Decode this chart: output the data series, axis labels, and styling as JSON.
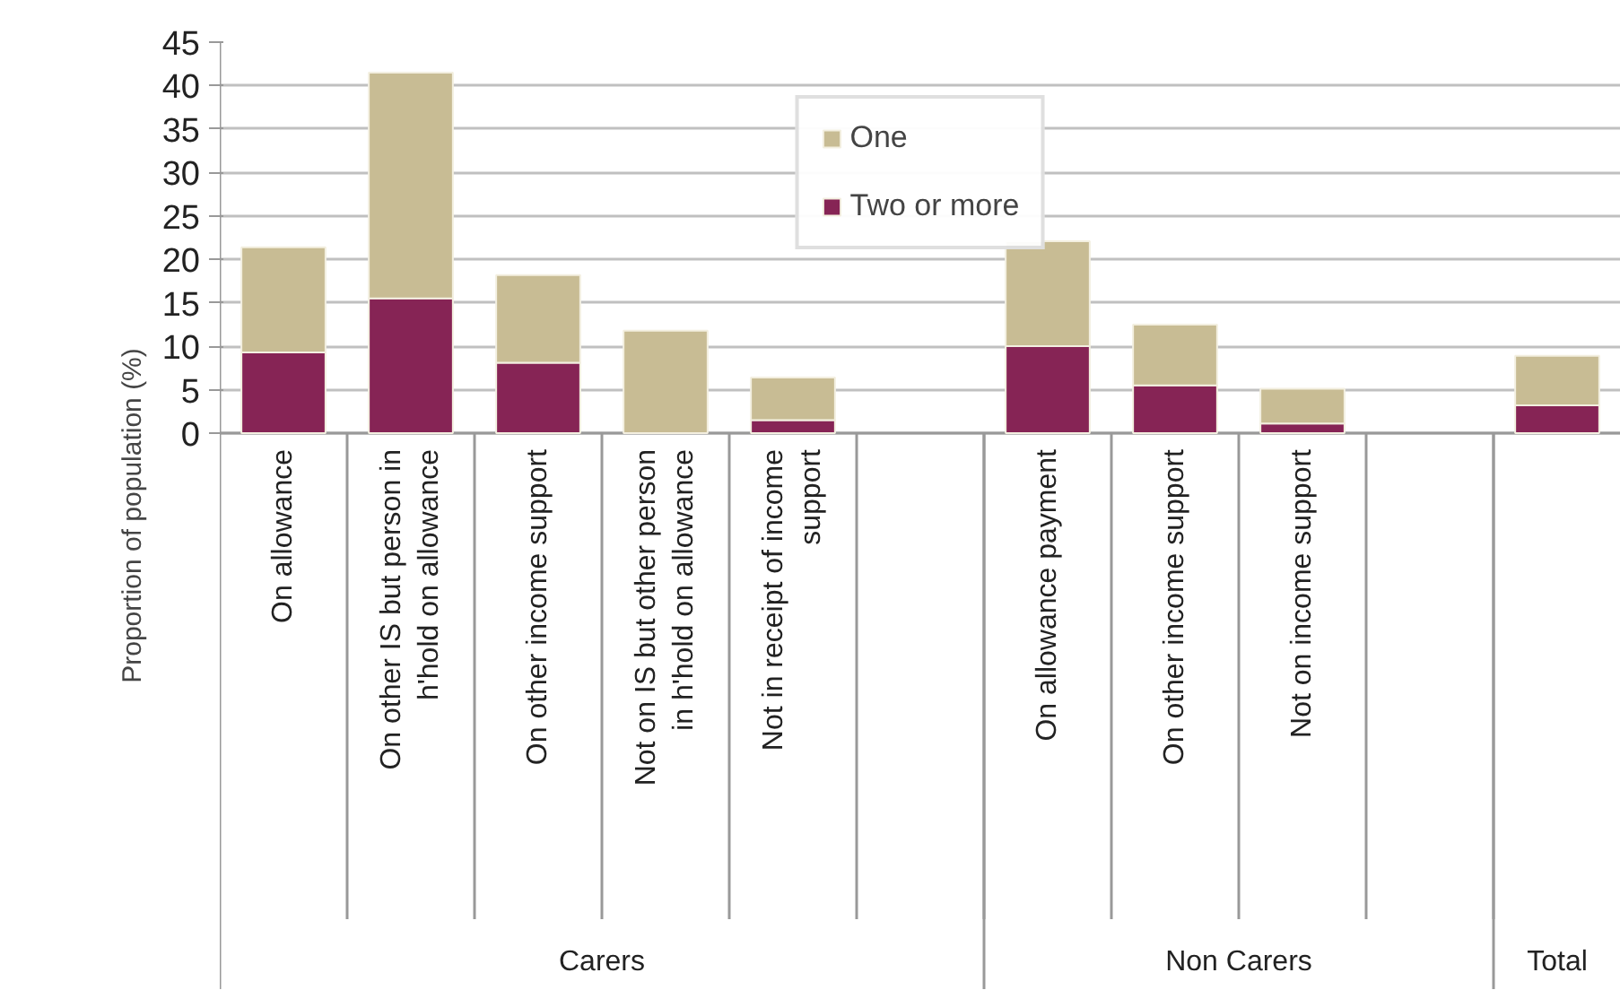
{
  "chart_data": {
    "type": "bar",
    "stacked": true,
    "ylabel": "Proportion of population (%)",
    "categories": [
      "On allowance",
      "On other IS but person in h'hold on allowance",
      "On other income support",
      "Not on IS but other person in h'hold on allowance",
      "Not in receipt of income support",
      null,
      "On allowance payment",
      "On other income support",
      "Not on income support",
      null,
      null
    ],
    "annotations": [
      "Carers",
      "Non Carers",
      "Total"
    ],
    "series": [
      {
        "name": "Two or more",
        "color": "#862455",
        "values": [
          9.3,
          15.5,
          8.1,
          null,
          1.5,
          null,
          10.0,
          5.5,
          1.1,
          null,
          3.2
        ]
      },
      {
        "name": "One",
        "color": "#c8bc94",
        "values": [
          12.1,
          26.0,
          10.1,
          11.8,
          4.9,
          null,
          12.1,
          7.0,
          4.0,
          null,
          5.7
        ]
      }
    ],
    "ylim": [
      0,
      45
    ],
    "yticks": [
      0,
      5,
      10,
      15,
      20,
      25,
      30,
      35,
      40,
      45
    ],
    "grid": "y",
    "legend": "top"
  }
}
